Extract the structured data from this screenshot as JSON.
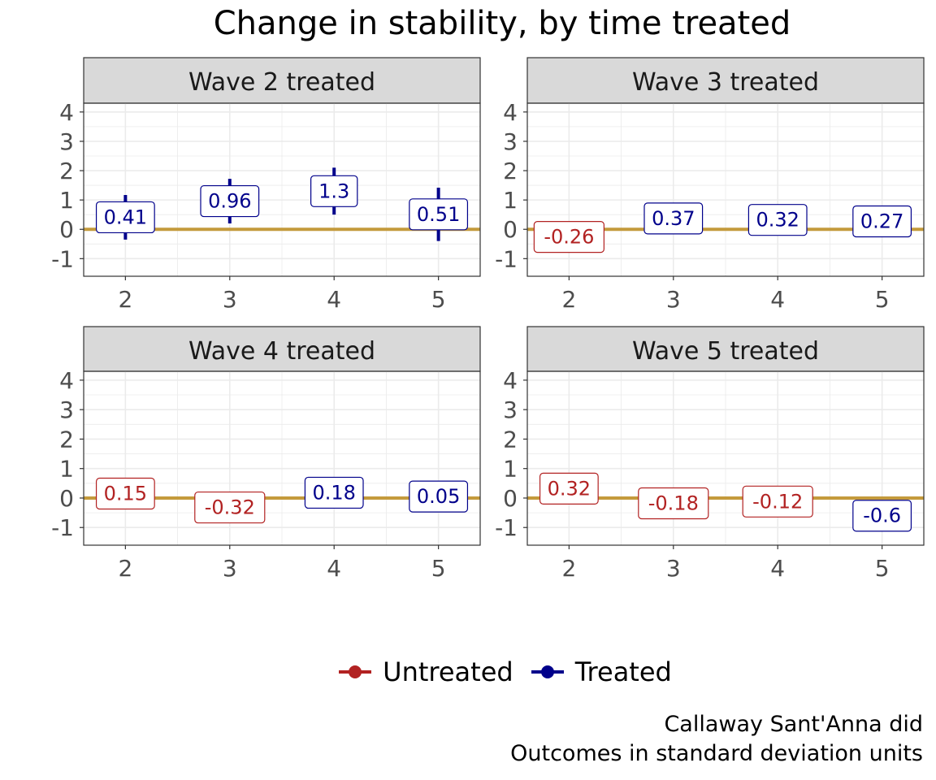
{
  "title": "Change in stability, by time treated",
  "caption": [
    "Callaway Sant'Anna did",
    "Outcomes in standard deviation units"
  ],
  "colors": {
    "untreated": "#b22222",
    "treated": "#00008b",
    "zero_line": "#c49a3c",
    "strip_fill": "#d9d9d9",
    "grid": "#ebebeb"
  },
  "chart_data": {
    "type": "scatter",
    "y_axis": {
      "ylim": [
        -1.6,
        4.3
      ],
      "ticks": [
        4,
        3,
        2,
        1,
        0,
        -1
      ]
    },
    "x_axis": {
      "xlim": [
        1.6,
        5.4
      ],
      "ticks": [
        2,
        3,
        4,
        5
      ]
    },
    "grid": true,
    "reference_line": 0,
    "legend": {
      "position": "bottom",
      "entries": [
        {
          "key": "untreated",
          "label": "Untreated"
        },
        {
          "key": "treated",
          "label": "Treated"
        }
      ]
    },
    "panels": [
      {
        "label": "Wave 2 treated",
        "points": [
          {
            "x": 2,
            "y": 0.41,
            "label": "0.41",
            "group": "treated",
            "ci": [
              -0.35,
              1.17
            ]
          },
          {
            "x": 3,
            "y": 0.96,
            "label": "0.96",
            "group": "treated",
            "ci": [
              0.2,
              1.72
            ]
          },
          {
            "x": 4,
            "y": 1.3,
            "label": "1.3",
            "group": "treated",
            "ci": [
              0.5,
              2.1
            ]
          },
          {
            "x": 5,
            "y": 0.51,
            "label": "0.51",
            "group": "treated",
            "ci": [
              -0.4,
              1.42
            ]
          }
        ]
      },
      {
        "label": "Wave 3 treated",
        "points": [
          {
            "x": 2,
            "y": -0.26,
            "label": "-0.26",
            "group": "untreated"
          },
          {
            "x": 3,
            "y": 0.37,
            "label": "0.37",
            "group": "treated"
          },
          {
            "x": 4,
            "y": 0.32,
            "label": "0.32",
            "group": "treated"
          },
          {
            "x": 5,
            "y": 0.27,
            "label": "0.27",
            "group": "treated"
          }
        ]
      },
      {
        "label": "Wave 4 treated",
        "points": [
          {
            "x": 2,
            "y": 0.15,
            "label": "0.15",
            "group": "untreated"
          },
          {
            "x": 3,
            "y": -0.32,
            "label": "-0.32",
            "group": "untreated"
          },
          {
            "x": 4,
            "y": 0.18,
            "label": "0.18",
            "group": "treated"
          },
          {
            "x": 5,
            "y": 0.05,
            "label": "0.05",
            "group": "treated"
          }
        ]
      },
      {
        "label": "Wave 5 treated",
        "points": [
          {
            "x": 2,
            "y": 0.32,
            "label": "0.32",
            "group": "untreated"
          },
          {
            "x": 3,
            "y": -0.18,
            "label": "-0.18",
            "group": "untreated"
          },
          {
            "x": 4,
            "y": -0.12,
            "label": "-0.12",
            "group": "untreated"
          },
          {
            "x": 5,
            "y": -0.6,
            "label": "-0.6",
            "group": "treated"
          }
        ]
      }
    ]
  }
}
